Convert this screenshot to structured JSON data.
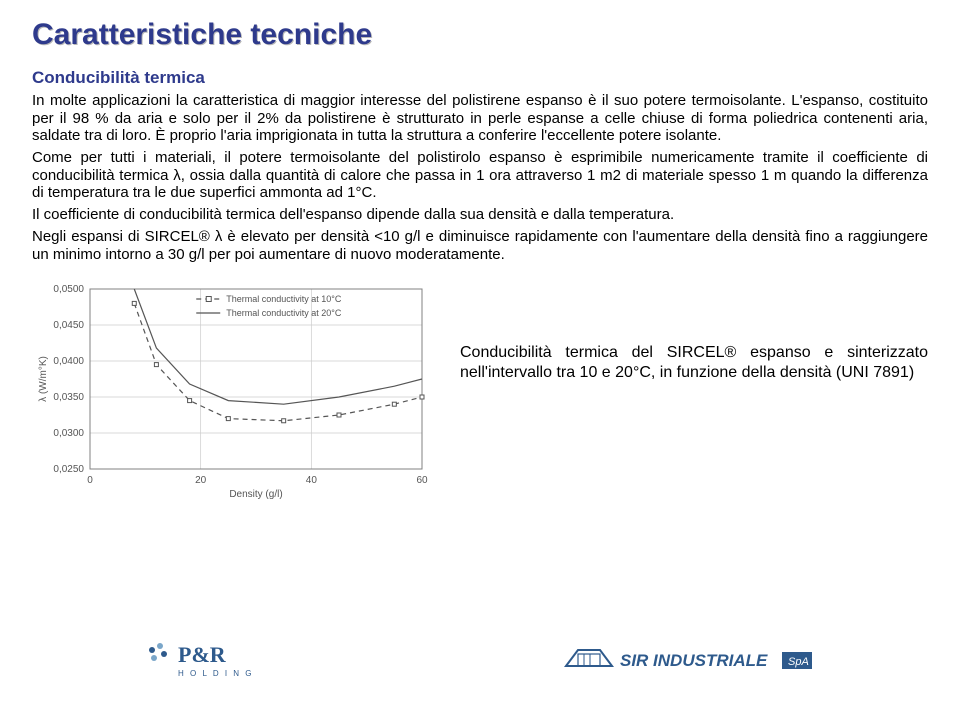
{
  "title": "Caratteristiche tecniche",
  "subtitle": "Conducibilità termica",
  "paragraphs": {
    "p1": "In molte applicazioni la caratteristica di maggior interesse del polistirene espanso è il suo potere termoisolante. L'espanso, costituito per il 98 % da aria e solo per il 2% da polistirene è strutturato in perle espanse a celle chiuse di forma poliedrica contenenti aria, saldate tra di loro. È proprio l'aria imprigionata in tutta la struttura a conferire l'eccellente potere isolante.",
    "p2": "Come per tutti i materiali, il potere termoisolante del polistirolo espanso è esprimibile numericamente tramite il coefficiente di conducibilità termica λ, ossia dalla quantità di calore che passa in 1 ora attraverso 1 m2 di materiale spesso 1 m quando la differenza di temperatura tra le due superfici ammonta ad 1°C.",
    "p3": "Il coefficiente di conducibilità termica dell'espanso dipende dalla sua densità e dalla temperatura.",
    "p4": "Negli espansi di SIRCEL® λ è elevato per densità <10 g/l e diminuisce rapidamente con l'aumentare della densità fino a raggiungere un minimo intorno a 30 g/l per poi aumentare di nuovo moderatamente."
  },
  "caption": "Conducibilità termica del SIRCEL® espanso e sinterizzato nell'intervallo tra 10 e 20°C, in funzione della densità (UNI 7891)",
  "chart": {
    "type": "line",
    "ylabel": "λ (W/m°K)",
    "xlabel": "Density (g/l)",
    "x_ticks": [
      0,
      20,
      40,
      60
    ],
    "y_ticks": [
      "0,0250",
      "0,0300",
      "0,0350",
      "0,0400",
      "0,0450",
      "0,0500"
    ],
    "xlim": [
      0,
      60
    ],
    "ylim": [
      0.025,
      0.05
    ],
    "legend": [
      {
        "label": "Thermal conductivity at 10°C",
        "style": "dashed",
        "marker": "square"
      },
      {
        "label": "Thermal conductivity at 20°C",
        "style": "solid",
        "marker": "none"
      }
    ],
    "series_dashed_points": [
      {
        "x": 8,
        "y": 0.048
      },
      {
        "x": 12,
        "y": 0.0395
      },
      {
        "x": 18,
        "y": 0.0345
      },
      {
        "x": 25,
        "y": 0.032
      },
      {
        "x": 35,
        "y": 0.0317
      },
      {
        "x": 45,
        "y": 0.0325
      },
      {
        "x": 55,
        "y": 0.034
      },
      {
        "x": 60,
        "y": 0.035
      }
    ],
    "series_solid_points": [
      {
        "x": 8,
        "y": 0.05
      },
      {
        "x": 12,
        "y": 0.0418
      },
      {
        "x": 18,
        "y": 0.0368
      },
      {
        "x": 25,
        "y": 0.0345
      },
      {
        "x": 35,
        "y": 0.034
      },
      {
        "x": 45,
        "y": 0.035
      },
      {
        "x": 55,
        "y": 0.0365
      },
      {
        "x": 60,
        "y": 0.0375
      }
    ],
    "colors": {
      "axis": "#808080",
      "grid": "#cccccc",
      "line": "#555555",
      "text": "#555555",
      "background": "#ffffff"
    },
    "tick_fontsize": 10,
    "label_fontsize": 10,
    "line_width": 1.2,
    "marker_size": 4
  },
  "logos": {
    "left_text": "P&R",
    "left_sub": "H O L D I N G",
    "right_text": "SIR INDUSTRIALE",
    "right_sub": "SpA"
  },
  "colors": {
    "title_color": "#2e3a8c",
    "body_color": "#000000",
    "background": "#ffffff"
  }
}
